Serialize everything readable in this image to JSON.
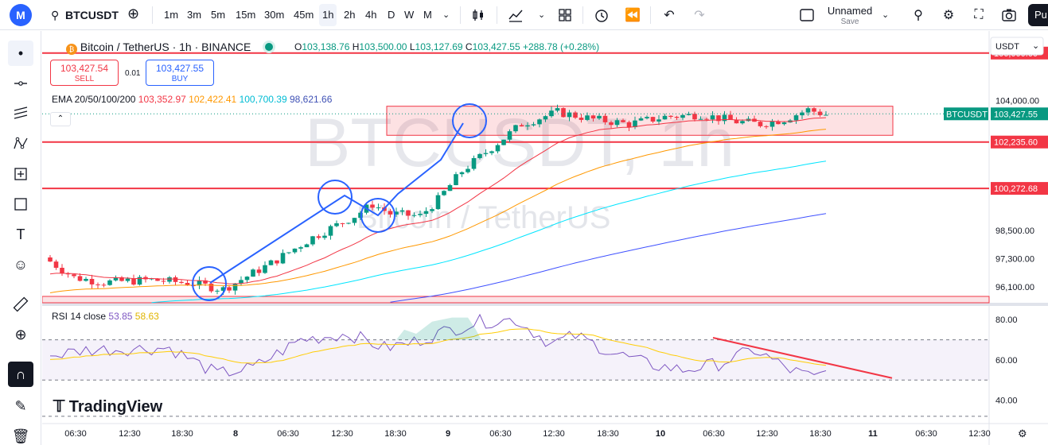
{
  "topbar": {
    "symbol": "BTCUSDT",
    "intervals": [
      "1m",
      "3m",
      "5m",
      "15m",
      "30m",
      "45m",
      "1h",
      "2h",
      "4h",
      "D",
      "W",
      "M"
    ],
    "active_interval": "1h",
    "layout_name": "Unnamed",
    "layout_status": "Save",
    "publish_label": "Pu",
    "logo_letter": "M"
  },
  "legend": {
    "title": "Bitcoin / TetherUS · 1h · BINANCE",
    "open_label": "O",
    "open": "103,138.76",
    "high_label": "H",
    "high": "103,500.00",
    "low_label": "L",
    "low": "103,127.69",
    "close_label": "C",
    "close": "103,427.55",
    "change": "+288.78 (+0.28%)",
    "sell_price": "103,427.54",
    "sell_label": "SELL",
    "buy_price": "103,427.55",
    "buy_label": "BUY",
    "spread": "0.01",
    "ema_label": "EMA 20/50/100/200",
    "ema20": "103,352.97",
    "ema50": "102,422.41",
    "ema100": "100,700.39",
    "ema200": "98,621.66",
    "rsi_label": "RSI 14 close",
    "rsi_value": "53.85",
    "rsi_ma": "58.63"
  },
  "watermark": {
    "line1": "BTCUSDT, 1h",
    "line2": "Bitcoin / TetherUS"
  },
  "price_scale": {
    "currency": "USDT",
    "ticks": [
      "104,000.00",
      "98,500.00",
      "97,300.00",
      "96,100.00"
    ],
    "level_labels": [
      "106,000.00",
      "102,235.60",
      "100,272.68"
    ],
    "last_symbol": "BTCUSDT",
    "last_price": "103,427.55"
  },
  "rsi_scale": {
    "ticks": [
      "80.00",
      "60.00",
      "40.00"
    ]
  },
  "time_axis": {
    "labels": [
      "06:30",
      "12:30",
      "18:30",
      "8",
      "06:30",
      "12:30",
      "18:30",
      "9",
      "06:30",
      "12:30",
      "18:30",
      "10",
      "06:30",
      "12:30",
      "18:30",
      "11",
      "06:30",
      "12:30"
    ]
  },
  "branding": {
    "text": "TradingView"
  },
  "colors": {
    "up": "#089981",
    "down": "#f23645",
    "ema20": "#f23645",
    "ema50": "#ff9800",
    "ema100": "#00e5ff",
    "ema200": "#3f51ff",
    "rsi": "#7e57c2",
    "rsi_ma": "#ffcd05",
    "accent": "#2962ff"
  },
  "chart_data": {
    "type": "candlestick",
    "price_range": [
      95500,
      106800
    ],
    "levels": [
      106000,
      102235.6,
      100272.68
    ],
    "rsi_range": [
      30,
      86
    ]
  }
}
